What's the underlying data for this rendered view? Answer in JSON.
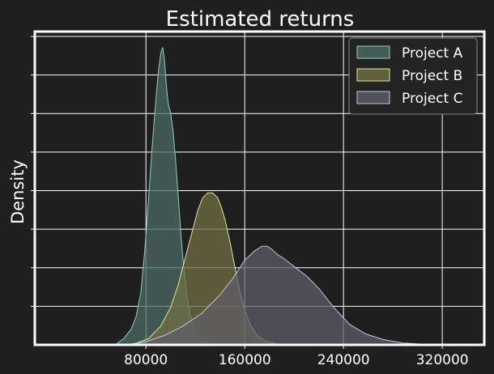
{
  "chart_data": {
    "type": "area",
    "title": "Estimated returns",
    "xlabel": "",
    "ylabel": "Density",
    "xlim": [
      -10000,
      354000
    ],
    "ylim": [
      0,
      1.0
    ],
    "x_ticks": [
      80000,
      160000,
      240000,
      320000
    ],
    "x_tick_labels": [
      "80000",
      "160000",
      "240000",
      "320000"
    ],
    "y_tick_count": 8,
    "grid": true,
    "legend_position": "top-right",
    "series": [
      {
        "name": "Project A",
        "color": "#4d6b66",
        "line_color": "#8fd0c4",
        "x": [
          55000,
          62000,
          68000,
          72000,
          76000,
          79000,
          82000,
          85000,
          88000,
          90000,
          92000,
          93500,
          95000,
          96500,
          98000,
          100000,
          102000,
          104000,
          106000,
          108000,
          110000,
          113000,
          116000,
          120000,
          125000,
          130000,
          136000
        ],
        "y": [
          0.0,
          0.02,
          0.05,
          0.09,
          0.17,
          0.3,
          0.46,
          0.63,
          0.78,
          0.87,
          0.93,
          0.95,
          0.91,
          0.83,
          0.77,
          0.74,
          0.68,
          0.59,
          0.48,
          0.37,
          0.27,
          0.16,
          0.09,
          0.04,
          0.015,
          0.005,
          0.0
        ]
      },
      {
        "name": "Project B",
        "color": "#707045",
        "line_color": "#e0e59b",
        "x": [
          62000,
          72000,
          82000,
          92000,
          100000,
          106000,
          112000,
          118000,
          122000,
          126000,
          130000,
          134000,
          138000,
          141000,
          144000,
          148000,
          152000,
          156000,
          160000,
          165000,
          170000,
          178000,
          186000,
          195000
        ],
        "y": [
          0.0,
          0.005,
          0.02,
          0.06,
          0.12,
          0.19,
          0.28,
          0.37,
          0.43,
          0.47,
          0.485,
          0.485,
          0.47,
          0.44,
          0.4,
          0.33,
          0.25,
          0.17,
          0.11,
          0.06,
          0.03,
          0.01,
          0.003,
          0.0
        ]
      },
      {
        "name": "Project C",
        "color": "#5f5e68",
        "line_color": "#c8c2dc",
        "x": [
          65000,
          80000,
          95000,
          110000,
          125000,
          140000,
          150000,
          160000,
          168000,
          174000,
          178000,
          182000,
          186000,
          192000,
          200000,
          210000,
          220000,
          232000,
          245000,
          258000,
          272000,
          288000,
          305000,
          320000
        ],
        "y": [
          0.0,
          0.01,
          0.03,
          0.06,
          0.1,
          0.16,
          0.21,
          0.27,
          0.3,
          0.315,
          0.315,
          0.305,
          0.29,
          0.275,
          0.25,
          0.22,
          0.18,
          0.12,
          0.065,
          0.035,
          0.017,
          0.006,
          0.002,
          0.0
        ]
      }
    ]
  },
  "colors": {
    "background": "#1f1f1f",
    "grid": "#ffffff",
    "frame": "#ffffff",
    "legend_background": "#232323",
    "legend_border": "#8a8a8a"
  }
}
